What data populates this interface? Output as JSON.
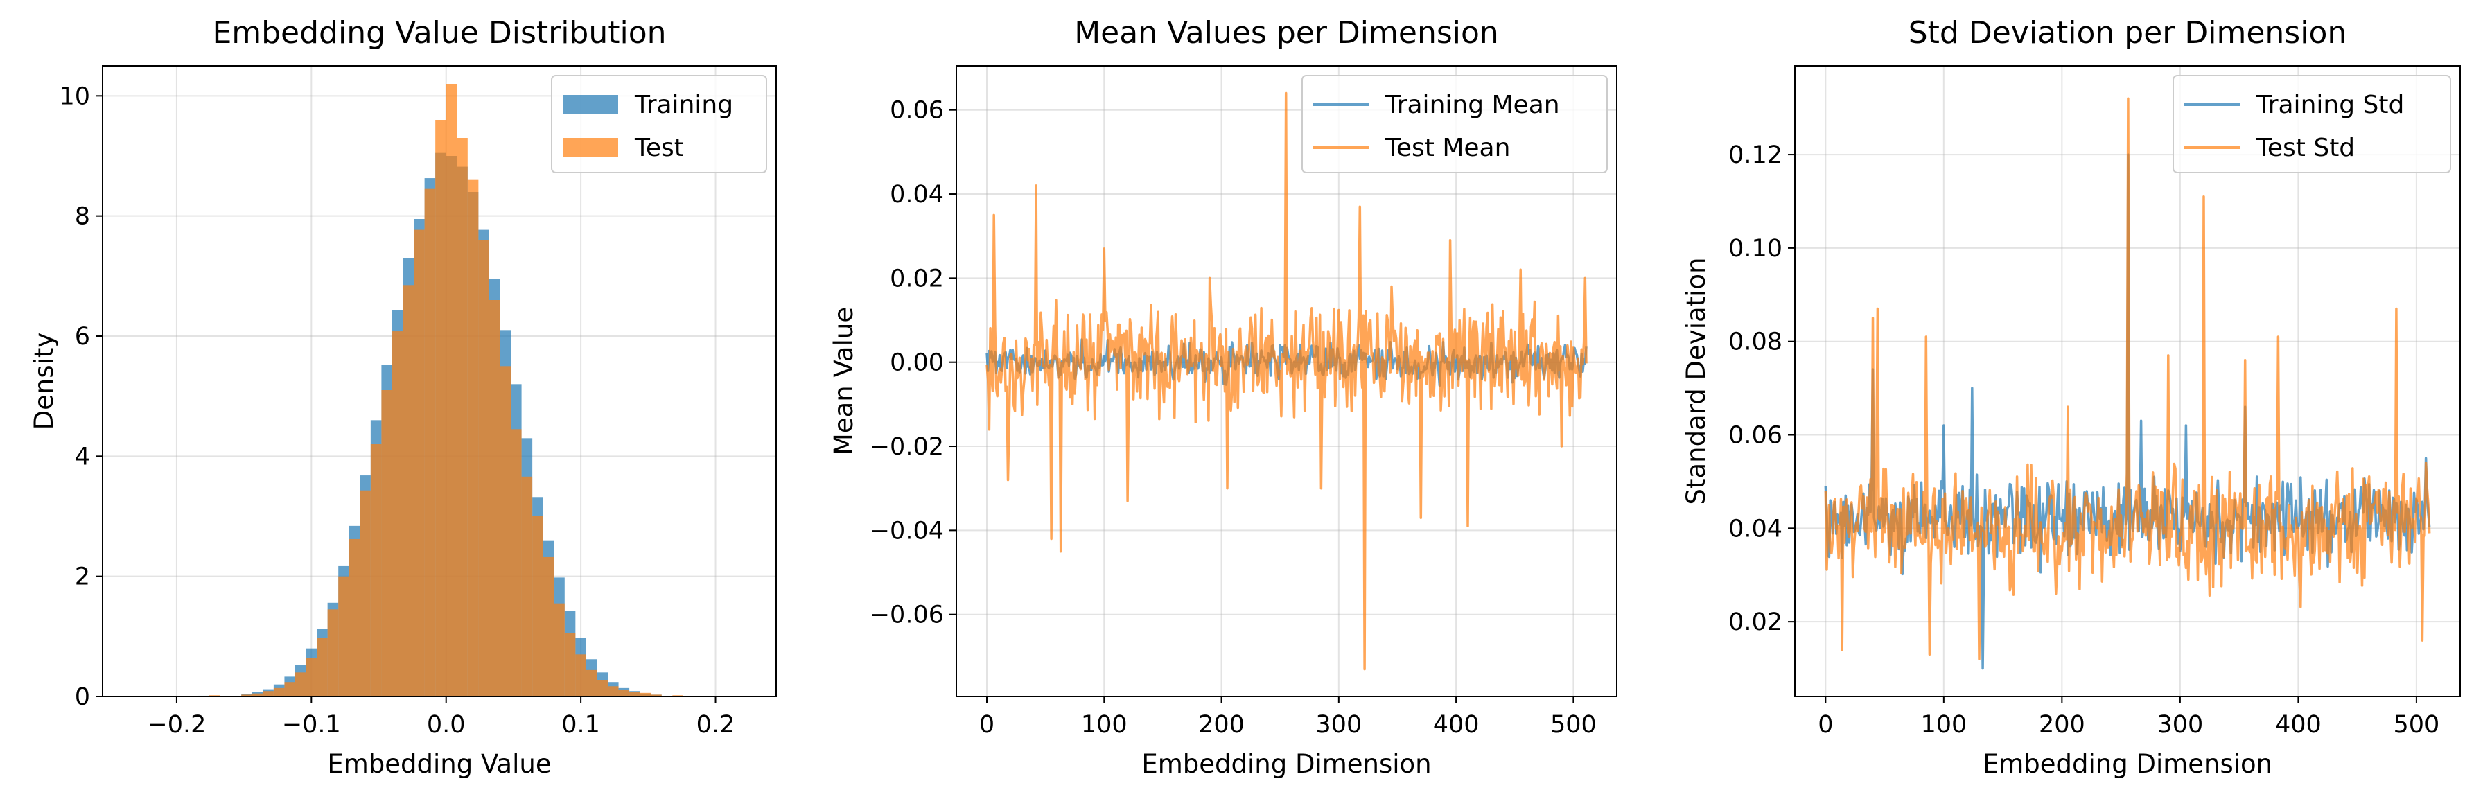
{
  "colors": {
    "training": "#1f77b4",
    "test": "#ff7f0e",
    "grid": "#b0b0b0"
  },
  "chart_data": [
    {
      "type": "histogram",
      "title": "Embedding Value Distribution",
      "xlabel": "Embedding Value",
      "ylabel": "Density",
      "xlim": [
        -0.255,
        0.245
      ],
      "ylim": [
        0,
        10.5
      ],
      "xticks": [
        -0.2,
        -0.1,
        0.0,
        0.1,
        0.2
      ],
      "xtick_labels": [
        "−0.2",
        "−0.1",
        "0.0",
        "0.1",
        "0.2"
      ],
      "yticks": [
        0,
        2,
        4,
        6,
        8,
        10
      ],
      "ytick_labels": [
        "0",
        "2",
        "4",
        "6",
        "8",
        "10"
      ],
      "grid": true,
      "legend": "top-right",
      "bin_width": 0.008,
      "series": [
        {
          "name": "Training",
          "color": "#1f77b4",
          "bins": [
            [
              -0.232,
              0.004
            ],
            [
              -0.184,
              0.012
            ],
            [
              -0.152,
              0.04
            ],
            [
              -0.144,
              0.08
            ],
            [
              -0.136,
              0.12
            ],
            [
              -0.128,
              0.2
            ],
            [
              -0.12,
              0.33
            ],
            [
              -0.112,
              0.52
            ],
            [
              -0.104,
              0.8
            ],
            [
              -0.096,
              1.13
            ],
            [
              -0.088,
              1.56
            ],
            [
              -0.08,
              2.17
            ],
            [
              -0.072,
              2.84
            ],
            [
              -0.064,
              3.68
            ],
            [
              -0.056,
              4.6
            ],
            [
              -0.048,
              5.52
            ],
            [
              -0.04,
              6.43
            ],
            [
              -0.032,
              7.3
            ],
            [
              -0.024,
              7.95
            ],
            [
              -0.016,
              8.63
            ],
            [
              -0.008,
              9.05
            ],
            [
              0.0,
              9.0
            ],
            [
              0.008,
              8.82
            ],
            [
              0.016,
              8.4
            ],
            [
              0.024,
              7.77
            ],
            [
              0.032,
              6.95
            ],
            [
              0.04,
              6.1
            ],
            [
              0.048,
              5.2
            ],
            [
              0.056,
              4.3
            ],
            [
              0.064,
              3.32
            ],
            [
              0.072,
              2.6
            ],
            [
              0.08,
              1.98
            ],
            [
              0.088,
              1.43
            ],
            [
              0.096,
              0.97
            ],
            [
              0.104,
              0.62
            ],
            [
              0.112,
              0.4
            ],
            [
              0.12,
              0.24
            ],
            [
              0.128,
              0.14
            ],
            [
              0.136,
              0.09
            ],
            [
              0.144,
              0.05
            ],
            [
              0.152,
              0.03
            ],
            [
              0.184,
              0.008
            ]
          ]
        },
        {
          "name": "Test",
          "color": "#ff7f0e",
          "bins": [
            [
              -0.192,
              0.01
            ],
            [
              -0.176,
              0.02
            ],
            [
              -0.152,
              0.03
            ],
            [
              -0.144,
              0.05
            ],
            [
              -0.136,
              0.09
            ],
            [
              -0.128,
              0.14
            ],
            [
              -0.12,
              0.24
            ],
            [
              -0.112,
              0.4
            ],
            [
              -0.104,
              0.64
            ],
            [
              -0.096,
              0.97
            ],
            [
              -0.088,
              1.45
            ],
            [
              -0.08,
              2.0
            ],
            [
              -0.072,
              2.62
            ],
            [
              -0.064,
              3.43
            ],
            [
              -0.056,
              4.2
            ],
            [
              -0.048,
              5.1
            ],
            [
              -0.04,
              6.08
            ],
            [
              -0.032,
              6.85
            ],
            [
              -0.024,
              7.77
            ],
            [
              -0.016,
              8.45
            ],
            [
              -0.008,
              9.6
            ],
            [
              0.0,
              10.2
            ],
            [
              0.008,
              9.3
            ],
            [
              0.016,
              8.6
            ],
            [
              0.024,
              7.6
            ],
            [
              0.032,
              6.6
            ],
            [
              0.04,
              5.5
            ],
            [
              0.048,
              4.45
            ],
            [
              0.056,
              3.66
            ],
            [
              0.064,
              3.0
            ],
            [
              0.072,
              2.32
            ],
            [
              0.08,
              1.55
            ],
            [
              0.088,
              1.06
            ],
            [
              0.096,
              0.7
            ],
            [
              0.104,
              0.44
            ],
            [
              0.112,
              0.27
            ],
            [
              0.12,
              0.17
            ],
            [
              0.128,
              0.11
            ],
            [
              0.136,
              0.08
            ],
            [
              0.144,
              0.06
            ],
            [
              0.152,
              0.03
            ],
            [
              0.168,
              0.02
            ],
            [
              0.2,
              0.006
            ]
          ]
        }
      ]
    },
    {
      "type": "line",
      "title": "Mean Values per Dimension",
      "xlabel": "Embedding Dimension",
      "ylabel": "Mean Value",
      "xlim": [
        -26,
        537
      ],
      "ylim": [
        -0.0795,
        0.0705
      ],
      "xticks": [
        0,
        100,
        200,
        300,
        400,
        500
      ],
      "xtick_labels": [
        "0",
        "100",
        "200",
        "300",
        "400",
        "500"
      ],
      "yticks": [
        -0.06,
        -0.04,
        -0.02,
        0.0,
        0.02,
        0.04,
        0.06
      ],
      "ytick_labels": [
        "−0.06",
        "−0.04",
        "−0.02",
        "0.00",
        "0.02",
        "0.04",
        "0.06"
      ],
      "grid": true,
      "legend": "top-right",
      "x_range": [
        0,
        511
      ],
      "series": [
        {
          "name": "Training Mean",
          "color": "#1f77b4",
          "summary": {
            "center": 0.0,
            "amplitude": 0.004
          },
          "spikes": []
        },
        {
          "name": "Test Mean",
          "color": "#ff7f0e",
          "summary": {
            "center": 0.0,
            "amplitude": 0.012
          },
          "spikes": [
            [
              2,
              -0.016
            ],
            [
              6,
              0.035
            ],
            [
              18,
              -0.028
            ],
            [
              42,
              0.042
            ],
            [
              55,
              -0.042
            ],
            [
              63,
              -0.045
            ],
            [
              100,
              0.027
            ],
            [
              120,
              -0.033
            ],
            [
              190,
              0.02
            ],
            [
              205,
              -0.03
            ],
            [
              255,
              0.064
            ],
            [
              285,
              -0.03
            ],
            [
              318,
              0.037
            ],
            [
              322,
              -0.073
            ],
            [
              345,
              0.018
            ],
            [
              370,
              -0.037
            ],
            [
              395,
              0.029
            ],
            [
              410,
              -0.039
            ],
            [
              455,
              0.022
            ],
            [
              490,
              -0.02
            ],
            [
              510,
              0.02
            ]
          ]
        }
      ]
    },
    {
      "type": "line",
      "title": "Std Deviation per Dimension",
      "xlabel": "Embedding Dimension",
      "ylabel": "Standard Deviation",
      "xlim": [
        -26,
        537
      ],
      "ylim": [
        0.004,
        0.139
      ],
      "xticks": [
        0,
        100,
        200,
        300,
        400,
        500
      ],
      "xtick_labels": [
        "0",
        "100",
        "200",
        "300",
        "400",
        "500"
      ],
      "yticks": [
        0.02,
        0.04,
        0.06,
        0.08,
        0.1,
        0.12
      ],
      "ytick_labels": [
        "0.02",
        "0.04",
        "0.06",
        "0.08",
        "0.10",
        "0.12"
      ],
      "grid": true,
      "legend": "top-right",
      "x_range": [
        0,
        511
      ],
      "series": [
        {
          "name": "Training Std",
          "color": "#1f77b4",
          "summary": {
            "center": 0.042,
            "amplitude": 0.008
          },
          "spikes": [
            [
              0,
              0.049
            ],
            [
              40,
              0.074
            ],
            [
              100,
              0.062
            ],
            [
              124,
              0.07
            ],
            [
              133,
              0.01
            ],
            [
              256,
              0.12
            ],
            [
              267,
              0.063
            ],
            [
              305,
              0.062
            ],
            [
              355,
              0.066
            ],
            [
              508,
              0.055
            ]
          ]
        },
        {
          "name": "Test Std",
          "color": "#ff7f0e",
          "summary": {
            "center": 0.04,
            "amplitude": 0.011
          },
          "spikes": [
            [
              0,
              0.048
            ],
            [
              14,
              0.014
            ],
            [
              40,
              0.085
            ],
            [
              44,
              0.087
            ],
            [
              85,
              0.081
            ],
            [
              88,
              0.013
            ],
            [
              130,
              0.012
            ],
            [
              205,
              0.066
            ],
            [
              256,
              0.132
            ],
            [
              290,
              0.077
            ],
            [
              320,
              0.111
            ],
            [
              355,
              0.076
            ],
            [
              383,
              0.081
            ],
            [
              483,
              0.087
            ],
            [
              505,
              0.016
            ],
            [
              508,
              0.054
            ]
          ]
        }
      ]
    }
  ]
}
